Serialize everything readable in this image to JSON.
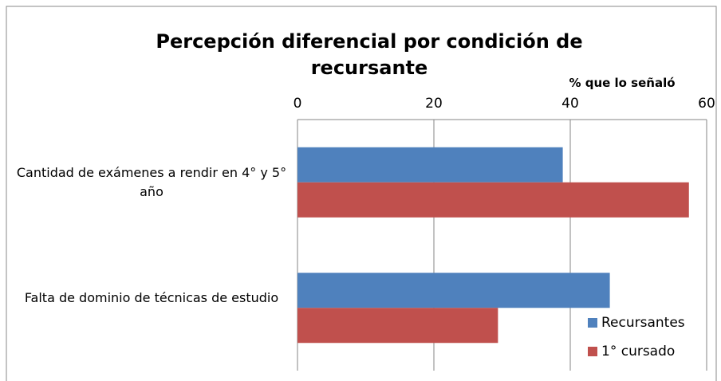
{
  "chart_data": {
    "type": "barh",
    "title": "Percepción diferencial por condición de recursante",
    "x_label": "% que lo señaló",
    "categories": [
      "Cantidad de exámenes a rendir en 4° y 5° año",
      "Falta de dominio de técnicas de estudio"
    ],
    "series": [
      {
        "name": "Recursantes",
        "color": "#4f81bd",
        "values": [
          38.9,
          45.8
        ]
      },
      {
        "name": "1° cursado",
        "color": "#c0504d",
        "values": [
          57.4,
          29.4
        ]
      }
    ],
    "xlim": [
      0,
      60
    ],
    "xticks": [
      0,
      20,
      40,
      60
    ],
    "grid": true,
    "legend": "lower right"
  }
}
